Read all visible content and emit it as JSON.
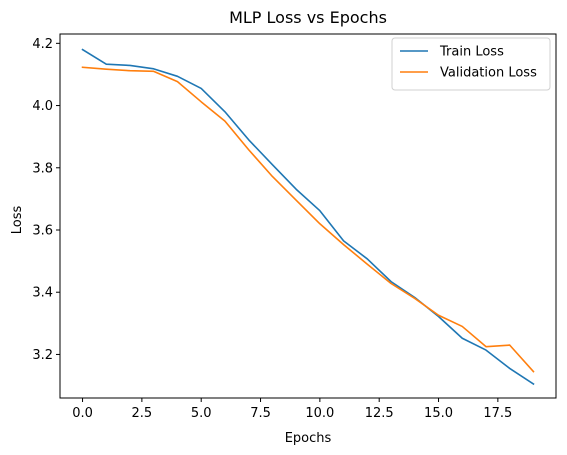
{
  "chart_data": {
    "type": "line",
    "title": "MLP Loss vs Epochs",
    "xlabel": "Epochs",
    "ylabel": "Loss",
    "xlim": [
      -0.95,
      19.95
    ],
    "ylim": [
      3.06,
      4.23
    ],
    "xticks": [
      0.0,
      2.5,
      5.0,
      7.5,
      10.0,
      12.5,
      15.0,
      17.5
    ],
    "xtick_labels": [
      "0.0",
      "2.5",
      "5.0",
      "7.5",
      "10.0",
      "12.5",
      "15.0",
      "17.5"
    ],
    "yticks": [
      3.2,
      3.4,
      3.6,
      3.8,
      4.0,
      4.2
    ],
    "ytick_labels": [
      "3.2",
      "3.4",
      "3.6",
      "3.8",
      "4.0",
      "4.2"
    ],
    "grid": false,
    "legend_position": "top-right",
    "x": [
      0,
      1,
      2,
      3,
      4,
      5,
      6,
      7,
      8,
      9,
      10,
      11,
      12,
      13,
      14,
      15,
      16,
      17,
      18,
      19
    ],
    "series": [
      {
        "name": "Train Loss",
        "color": "#1f77b4",
        "values": [
          4.18,
          4.133,
          4.129,
          4.118,
          4.094,
          4.055,
          3.98,
          3.89,
          3.81,
          3.731,
          3.662,
          3.565,
          3.507,
          3.434,
          3.383,
          3.322,
          3.252,
          3.214,
          3.155,
          3.105
        ]
      },
      {
        "name": "Validation Loss",
        "color": "#ff7f0e",
        "values": [
          4.123,
          4.117,
          4.112,
          4.11,
          4.077,
          4.012,
          3.95,
          3.858,
          3.772,
          3.696,
          3.62,
          3.553,
          3.49,
          3.428,
          3.38,
          3.326,
          3.29,
          3.225,
          3.23,
          3.145
        ]
      }
    ]
  }
}
